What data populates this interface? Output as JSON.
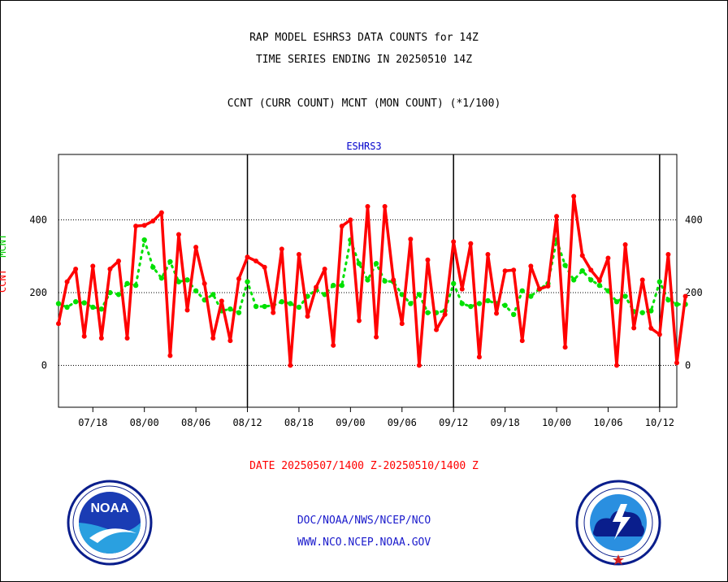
{
  "header": {
    "line1": "RAP MODEL ESHRS3 DATA COUNTS for 14Z",
    "line2": "TIME SERIES ENDING IN 20250510 14Z",
    "line3": "CCNT (CURR COUNT) MCNT (MON COUNT) (*1/100)"
  },
  "axis_left_label": {
    "part1": "CCNT",
    "part2": "MCNT"
  },
  "date_range": "DATE 20250507/1400 Z-20250510/1400 Z",
  "footer": {
    "org": "DOC/NOAA/NWS/NCEP/NCO",
    "url": "WWW.NCO.NCEP.NOAA.GOV"
  },
  "logos": {
    "left": "noaa-logo",
    "right": "nws-logo"
  },
  "colors": {
    "ccnt": "#ff0000",
    "mcnt": "#00e000",
    "title": "#0000cc"
  },
  "chart_data": {
    "type": "line",
    "title": "ESHRS3",
    "xlabel": "",
    "ylabel": "CCNT MCNT",
    "ylim": [
      -115,
      580
    ],
    "yticks": [
      0,
      200,
      400
    ],
    "x_range": [
      0,
      72
    ],
    "x_tick_positions": [
      4,
      10,
      16,
      22,
      28,
      34,
      40,
      46,
      52,
      58,
      64,
      70
    ],
    "x_tick_labels": [
      "07/18",
      "08/00",
      "08/06",
      "08/12",
      "08/18",
      "09/00",
      "09/06",
      "09/12",
      "09/18",
      "10/00",
      "10/06",
      "10/12"
    ],
    "day_boundaries": [
      22,
      46,
      70
    ],
    "grid": "horizontal dotted at 0, 200, 400",
    "series": [
      {
        "name": "CCNT",
        "values": [
          115,
          230,
          265,
          80,
          273,
          75,
          265,
          287,
          75,
          383,
          385,
          397,
          420,
          27,
          360,
          152,
          325,
          225,
          75,
          177,
          68,
          238,
          298,
          287,
          270,
          145,
          320,
          0,
          305,
          135,
          215,
          265,
          55,
          383,
          400,
          123,
          437,
          78,
          437,
          235,
          115,
          347,
          0,
          290,
          98,
          140,
          340,
          210,
          335,
          23,
          305,
          143,
          260,
          262,
          68,
          273,
          210,
          218,
          410,
          50,
          465,
          302,
          262,
          233,
          295,
          0,
          332,
          103,
          235,
          102,
          85,
          305,
          7,
          190
        ]
      },
      {
        "name": "MCNT",
        "values": [
          170,
          160,
          175,
          172,
          160,
          155,
          200,
          195,
          225,
          220,
          345,
          270,
          240,
          285,
          230,
          235,
          205,
          180,
          195,
          150,
          155,
          145,
          230,
          162,
          162,
          165,
          175,
          170,
          160,
          190,
          208,
          195,
          220,
          220,
          345,
          280,
          235,
          280,
          232,
          230,
          195,
          170,
          195,
          145,
          145,
          150,
          225,
          170,
          162,
          170,
          178,
          170,
          165,
          140,
          205,
          190,
          210,
          225,
          345,
          275,
          235,
          260,
          235,
          220,
          205,
          175,
          190,
          148,
          145,
          150,
          230,
          180,
          168,
          168
        ]
      }
    ]
  }
}
